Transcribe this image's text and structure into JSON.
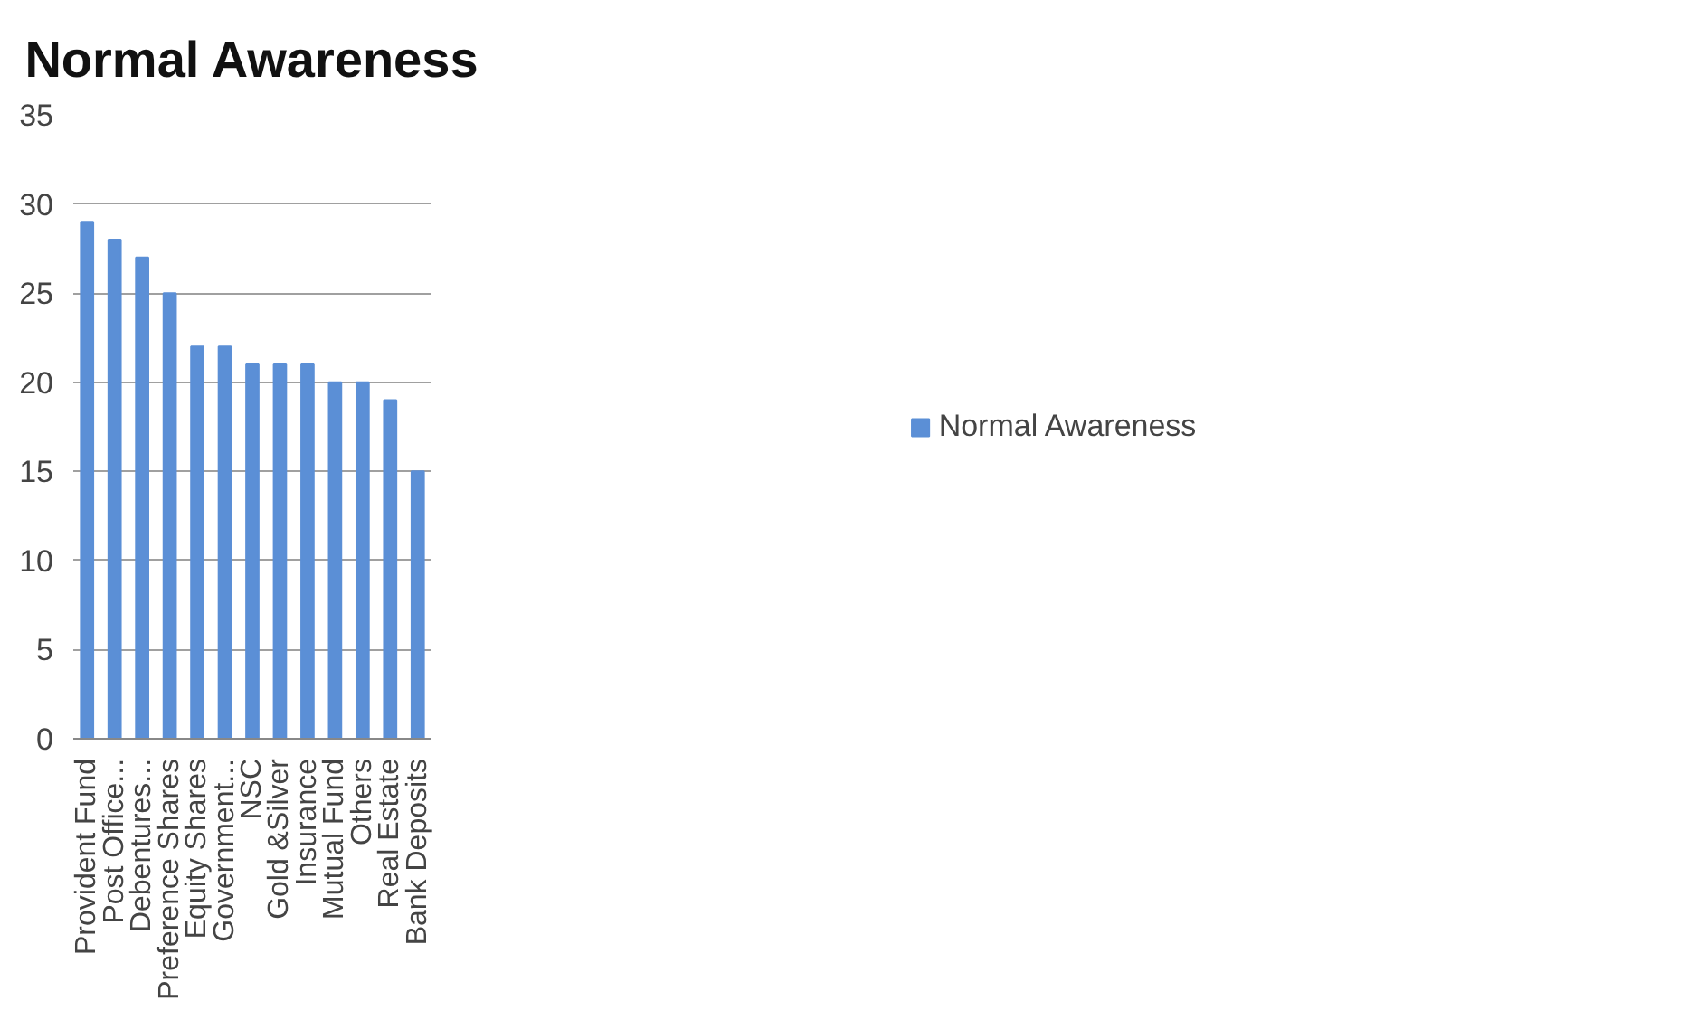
{
  "chart_data": {
    "type": "bar",
    "title": "Normal Awareness",
    "categories": [
      "Provident Fund",
      "Post Office...",
      "Debentures...",
      "Preference Shares",
      "Equity Shares",
      "Government...",
      "NSC",
      "Gold &Silver",
      "Insurance",
      "Mutual Fund",
      "Others",
      "Real Estate",
      "Bank Deposits"
    ],
    "series": [
      {
        "name": "Normal Awareness",
        "color": "#5b8fd6",
        "values": [
          29,
          28,
          27,
          25,
          22,
          22,
          21,
          21,
          21,
          20,
          20,
          19,
          15
        ]
      }
    ],
    "ylim": [
      0,
      35
    ],
    "yticks": [
      0,
      5,
      10,
      15,
      20,
      25,
      30,
      35
    ],
    "grid": "y",
    "legend": "right"
  }
}
